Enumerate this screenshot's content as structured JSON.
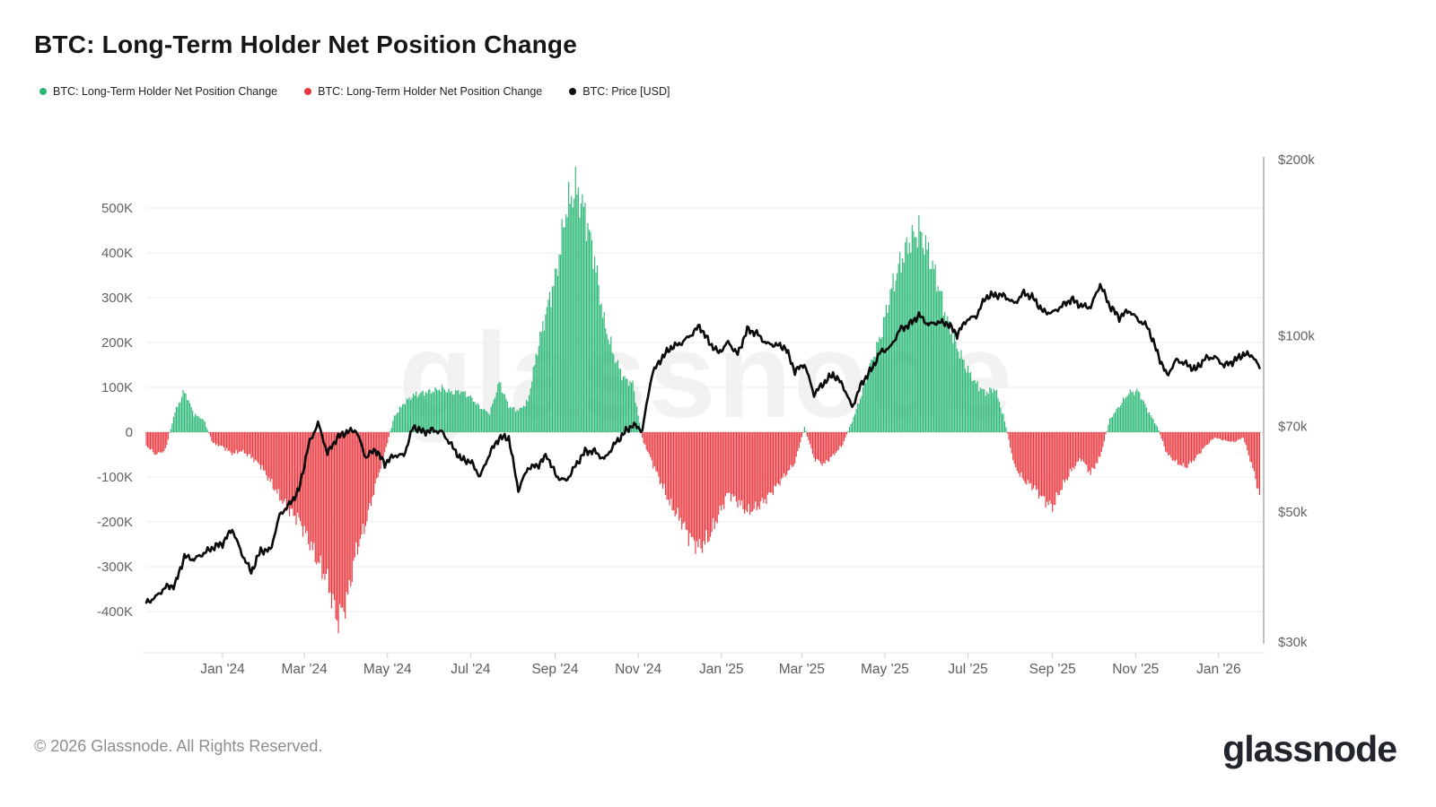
{
  "header": {
    "title": "BTC: Long-Term Holder Net Position Change"
  },
  "legend": {
    "items": [
      {
        "label": "BTC: Long-Term Holder Net Position Change",
        "color": "#2CB876",
        "icon": "green-dot"
      },
      {
        "label": "BTC: Long-Term Holder Net Position Change",
        "color": "#E8383F",
        "icon": "red-dot"
      },
      {
        "label": "BTC: Price [USD]",
        "color": "#111111",
        "icon": "black-dot"
      }
    ]
  },
  "footer": {
    "copyright": "© 2026 Glassnode. All Rights Reserved.",
    "brand": "glassnode"
  },
  "chart_data": {
    "type": "mixed",
    "title": "BTC: Long-Term Holder Net Position Change",
    "watermark": "glassnode",
    "grid": "horizontal-only",
    "x_axis": {
      "start": "2023-11-06",
      "end": "2026-02-03",
      "ticks": [
        {
          "date": "2024-01-01",
          "label": "Jan '24"
        },
        {
          "date": "2024-03-01",
          "label": "Mar '24"
        },
        {
          "date": "2024-05-01",
          "label": "May '24"
        },
        {
          "date": "2024-07-01",
          "label": "Jul '24"
        },
        {
          "date": "2024-09-01",
          "label": "Sep '24"
        },
        {
          "date": "2024-11-01",
          "label": "Nov '24"
        },
        {
          "date": "2025-01-01",
          "label": "Jan '25"
        },
        {
          "date": "2025-03-01",
          "label": "Mar '25"
        },
        {
          "date": "2025-05-01",
          "label": "May '25"
        },
        {
          "date": "2025-07-01",
          "label": "Jul '25"
        },
        {
          "date": "2025-09-01",
          "label": "Sep '25"
        },
        {
          "date": "2025-11-01",
          "label": "Nov '25"
        },
        {
          "date": "2026-01-01",
          "label": "Jan '26"
        }
      ]
    },
    "left_axis": {
      "unit": "BTC",
      "ticks": [
        {
          "value": 500,
          "label": "500K"
        },
        {
          "value": 400,
          "label": "400K"
        },
        {
          "value": 300,
          "label": "300K"
        },
        {
          "value": 200,
          "label": "200K"
        },
        {
          "value": 100,
          "label": "100K"
        },
        {
          "value": 0,
          "label": "0"
        },
        {
          "value": -100,
          "label": "-100K"
        },
        {
          "value": -200,
          "label": "-200K"
        },
        {
          "value": -300,
          "label": "-300K"
        },
        {
          "value": -400,
          "label": "-400K"
        }
      ]
    },
    "right_axis": {
      "scale": "log",
      "unit": "USD",
      "ticks": [
        {
          "value": 200,
          "label": "$200k"
        },
        {
          "value": 100,
          "label": "$100k"
        },
        {
          "value": 70,
          "label": "$70k"
        },
        {
          "value": 50,
          "label": "$50k"
        },
        {
          "value": 30,
          "label": "$30k"
        }
      ]
    },
    "dates": [
      "2023-11-06",
      "2023-11-13",
      "2023-11-20",
      "2023-11-27",
      "2023-12-04",
      "2023-12-11",
      "2023-12-18",
      "2023-12-25",
      "2024-01-01",
      "2024-01-08",
      "2024-01-15",
      "2024-01-22",
      "2024-01-29",
      "2024-02-05",
      "2024-02-12",
      "2024-02-19",
      "2024-02-26",
      "2024-03-04",
      "2024-03-11",
      "2024-03-18",
      "2024-03-25",
      "2024-04-01",
      "2024-04-08",
      "2024-04-15",
      "2024-04-22",
      "2024-04-29",
      "2024-05-06",
      "2024-05-13",
      "2024-05-20",
      "2024-05-27",
      "2024-06-03",
      "2024-06-10",
      "2024-06-17",
      "2024-06-24",
      "2024-07-01",
      "2024-07-08",
      "2024-07-15",
      "2024-07-22",
      "2024-07-29",
      "2024-08-05",
      "2024-08-12",
      "2024-08-19",
      "2024-08-26",
      "2024-09-02",
      "2024-09-09",
      "2024-09-16",
      "2024-09-23",
      "2024-09-30",
      "2024-10-07",
      "2024-10-14",
      "2024-10-21",
      "2024-10-28",
      "2024-11-04",
      "2024-11-11",
      "2024-11-18",
      "2024-11-25",
      "2024-12-02",
      "2024-12-09",
      "2024-12-16",
      "2024-12-23",
      "2024-12-30",
      "2025-01-06",
      "2025-01-13",
      "2025-01-20",
      "2025-01-27",
      "2025-02-03",
      "2025-02-10",
      "2025-02-17",
      "2025-02-24",
      "2025-03-03",
      "2025-03-10",
      "2025-03-17",
      "2025-03-24",
      "2025-03-31",
      "2025-04-07",
      "2025-04-14",
      "2025-04-21",
      "2025-04-28",
      "2025-05-05",
      "2025-05-12",
      "2025-05-19",
      "2025-05-26",
      "2025-06-02",
      "2025-06-09",
      "2025-06-16",
      "2025-06-23",
      "2025-06-30",
      "2025-07-07",
      "2025-07-14",
      "2025-07-21",
      "2025-07-28",
      "2025-08-04",
      "2025-08-11",
      "2025-08-18",
      "2025-08-25",
      "2025-09-01",
      "2025-09-08",
      "2025-09-15",
      "2025-09-22",
      "2025-09-29",
      "2025-10-06",
      "2025-10-13",
      "2025-10-20",
      "2025-10-27",
      "2025-11-03",
      "2025-11-10",
      "2025-11-17",
      "2025-11-24",
      "2025-12-01",
      "2025-12-08",
      "2025-12-15",
      "2025-12-22",
      "2025-12-29",
      "2026-01-05",
      "2026-01-12",
      "2026-01-19",
      "2026-01-26",
      "2026-01-31"
    ],
    "series": [
      {
        "name": "BTC: Long-Term Holder Net Position Change",
        "type": "bar",
        "unit": "K BTC",
        "color_positive": "#2CB876",
        "color_negative": "#E8383F",
        "values": [
          -30,
          -50,
          -40,
          45,
          92,
          40,
          28,
          -25,
          -32,
          -48,
          -42,
          -55,
          -75,
          -110,
          -145,
          -175,
          -195,
          -240,
          -290,
          -330,
          -420,
          -380,
          -265,
          -205,
          -120,
          -45,
          35,
          65,
          82,
          88,
          92,
          98,
          88,
          92,
          78,
          55,
          42,
          112,
          58,
          48,
          68,
          185,
          275,
          355,
          495,
          545,
          490,
          385,
          245,
          172,
          122,
          108,
          -15,
          -65,
          -115,
          -165,
          -195,
          -235,
          -258,
          -235,
          -185,
          -135,
          -155,
          -178,
          -168,
          -148,
          -122,
          -95,
          -68,
          12,
          -58,
          -72,
          -52,
          -28,
          25,
          85,
          155,
          215,
          310,
          375,
          425,
          450,
          400,
          330,
          245,
          190,
          142,
          108,
          88,
          98,
          25,
          -75,
          -108,
          -122,
          -148,
          -168,
          -122,
          -85,
          -58,
          -92,
          -55,
          28,
          58,
          88,
          92,
          48,
          12,
          -48,
          -68,
          -78,
          -58,
          -32,
          -12,
          -18,
          -22,
          -12,
          -80,
          -140
        ]
      },
      {
        "name": "BTC: Price [USD]",
        "type": "line",
        "unit": "$k",
        "color": "#0b0b0b",
        "values": [
          35.0,
          35.8,
          37.2,
          37.5,
          42.0,
          41.5,
          42.5,
          43.5,
          44.2,
          46.8,
          42.5,
          39.5,
          43.0,
          43.0,
          49.5,
          51.5,
          54.5,
          65.0,
          71.0,
          63.0,
          67.0,
          68.5,
          69.0,
          62.0,
          64.0,
          60.5,
          62.5,
          62.5,
          70.0,
          68.5,
          69.0,
          68.5,
          65.0,
          61.5,
          61.0,
          57.5,
          63.0,
          67.0,
          67.0,
          54.5,
          59.5,
          60.0,
          62.5,
          57.5,
          56.5,
          60.0,
          63.5,
          63.5,
          61.5,
          65.0,
          68.0,
          70.5,
          69.0,
          86.0,
          91.5,
          95.5,
          97.0,
          100.0,
          104.0,
          97.5,
          93.5,
          97.5,
          93.0,
          102.5,
          101.0,
          97.0,
          96.5,
          95.5,
          87.0,
          89.5,
          79.5,
          83.0,
          86.0,
          82.5,
          75.5,
          83.0,
          87.5,
          94.0,
          95.5,
          102.5,
          104.5,
          108.5,
          104.5,
          105.5,
          105.0,
          100.5,
          106.5,
          108.0,
          116.5,
          117.5,
          117.0,
          113.5,
          118.5,
          116.0,
          110.0,
          109.5,
          112.5,
          115.5,
          112.5,
          112.0,
          122.5,
          112.5,
          107.5,
          110.5,
          106.5,
          103.5,
          93.5,
          85.5,
          91.0,
          89.5,
          87.5,
          91.5,
          92.0,
          89.0,
          90.5,
          93.0,
          92.5,
          88.0
        ]
      }
    ]
  }
}
